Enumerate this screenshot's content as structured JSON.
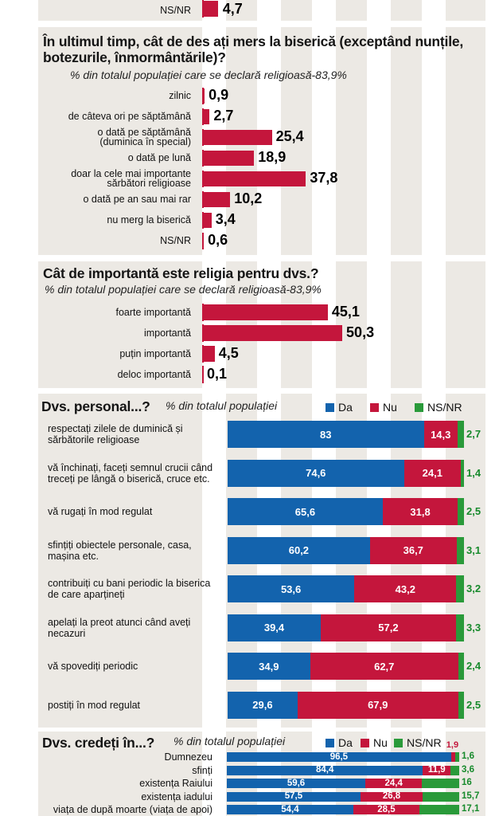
{
  "colors": {
    "da": "#1363ad",
    "nu": "#c4163c",
    "nsnr": "#2a9a3a",
    "panel": "#ece9e4"
  },
  "top_fragment": {
    "label": "NS/NR",
    "value": "4,7",
    "value_num": 4.7
  },
  "section_frequency": {
    "title": "În ultimul timp, cât de des ați mers la biserică (exceptând nunțile, botezurile, înmormântările)?",
    "subtitle": "% din totalul populației care se declară religioasă-83,9%"
  },
  "section_importance": {
    "title": "Cât de importantă este religia pentru dvs.?",
    "subtitle": "% din totalul populației care se declară religioasă-83,9%"
  },
  "section_personal": {
    "title": "Dvs. personal...?",
    "subtitle": "% din totalul populației",
    "legend": [
      "Da",
      "Nu",
      "NS/NR"
    ]
  },
  "section_belief": {
    "title": "Dvs. credeți în...?",
    "subtitle": "% din totalul populației",
    "legend": [
      "Da",
      "Nu",
      "NS/NR"
    ]
  },
  "chart_data": [
    {
      "type": "bar",
      "orientation": "horizontal",
      "title": "În ultimul timp, cât de des ați mers la biserică (exceptând nunțile, botezurile, înmormântările)?",
      "subtitle": "% din totalul populației care se declară religioasă-83,9%",
      "categories": [
        "zilnic",
        "de câteva ori pe săptămână",
        "o dată pe săptămână (duminica în special)",
        "o dată pe lună",
        "doar la cele mai importante sărbători religioase",
        "o dată pe an sau mai rar",
        "nu merg la biserică",
        "NS/NR"
      ],
      "labels": [
        [
          "zilnic"
        ],
        [
          "de câteva ori pe săptămână"
        ],
        [
          "o dată pe săptămână",
          "(duminica în special)"
        ],
        [
          "o dată pe lună"
        ],
        [
          "doar la cele mai importante",
          "sărbători religioase"
        ],
        [
          "o dată pe an sau mai rar"
        ],
        [
          "nu merg la biserică"
        ],
        [
          "NS/NR"
        ]
      ],
      "values": [
        0.9,
        2.7,
        25.4,
        18.9,
        37.8,
        10.2,
        3.4,
        0.6
      ],
      "value_labels": [
        "0,9",
        "2,7",
        "25,4",
        "18,9",
        "37,8",
        "10,2",
        "3,4",
        "0,6"
      ]
    },
    {
      "type": "bar",
      "orientation": "horizontal",
      "title": "Cât de importantă este religia pentru dvs.?",
      "subtitle": "% din totalul populației care se declară religioasă-83,9%",
      "categories": [
        "foarte importantă",
        "importantă",
        "puțin importantă",
        "deloc importantă"
      ],
      "values": [
        45.1,
        50.3,
        4.5,
        0.1
      ],
      "value_labels": [
        "45,1",
        "50,3",
        "4,5",
        "0,1"
      ]
    },
    {
      "type": "bar",
      "orientation": "horizontal",
      "stacked": true,
      "title": "Dvs. personal...?",
      "subtitle": "% din totalul populației",
      "categories": [
        "respectați zilele de duminică și sărbătorile religioase",
        "vă închinați, faceți semnul crucii când treceți pe lângă o biserică, cruce etc.",
        "vă rugați în mod regulat",
        "sfințiți obiectele personale, casa, mașina etc.",
        "contribuiți cu bani periodic la biserica de care aparțineți",
        "apelați la preot atunci când aveți necazuri",
        "vă spovediți periodic",
        "postiți în mod regulat"
      ],
      "labels": [
        [
          "respectați zilele de duminică și",
          "sărbătorile religioase"
        ],
        [
          "vă închinați, faceți semnul crucii când",
          "treceți pe lângă o biserică, cruce etc."
        ],
        [
          "vă rugați în mod regulat"
        ],
        [
          "sfințiți obiectele personale, casa,",
          "mașina etc."
        ],
        [
          "contribuiți cu bani periodic la biserica",
          "de care aparțineți"
        ],
        [
          "apelați la preot atunci când aveți",
          "necazuri"
        ],
        [
          "vă spovediți periodic"
        ],
        [
          "postiți în mod regulat"
        ]
      ],
      "series": [
        {
          "name": "Da",
          "values": [
            83,
            74.6,
            65.6,
            60.2,
            53.6,
            39.4,
            34.9,
            29.6
          ],
          "labels": [
            "83",
            "74,6",
            "65,6",
            "60,2",
            "53,6",
            "39,4",
            "34,9",
            "29,6"
          ]
        },
        {
          "name": "Nu",
          "values": [
            14.3,
            24.1,
            31.8,
            36.7,
            43.2,
            57.2,
            62.7,
            67.9
          ],
          "labels": [
            "14,3",
            "24,1",
            "31,8",
            "36,7",
            "43,2",
            "57,2",
            "62,7",
            "67,9"
          ]
        },
        {
          "name": "NS/NR",
          "values": [
            2.7,
            1.4,
            2.5,
            3.1,
            3.2,
            3.3,
            2.4,
            2.5
          ],
          "labels": [
            "2,7",
            "1,4",
            "2,5",
            "3,1",
            "3,2",
            "3,3",
            "2,4",
            "2,5"
          ]
        }
      ]
    },
    {
      "type": "bar",
      "orientation": "horizontal",
      "stacked": true,
      "title": "Dvs. credeți în...?",
      "subtitle": "% din totalul populației",
      "categories": [
        "Dumnezeu",
        "sfinți",
        "existența Raiului",
        "existența iadului",
        "viața de după moarte (viața de apoi)"
      ],
      "series": [
        {
          "name": "Da",
          "values": [
            96.5,
            84.4,
            59.6,
            57.5,
            54.4
          ],
          "labels": [
            "96,5",
            "84,4",
            "59,6",
            "57,5",
            "54,4"
          ]
        },
        {
          "name": "Nu",
          "values": [
            1.9,
            11.9,
            24.4,
            26.8,
            28.5
          ],
          "labels": [
            "1,9",
            "11,9",
            "24,4",
            "26,8",
            "28,5"
          ]
        },
        {
          "name": "NS/NR",
          "values": [
            1.6,
            3.6,
            16,
            15.7,
            17.1
          ],
          "labels": [
            "1,6",
            "3,6",
            "16",
            "15,7",
            "17,1"
          ]
        }
      ]
    }
  ]
}
